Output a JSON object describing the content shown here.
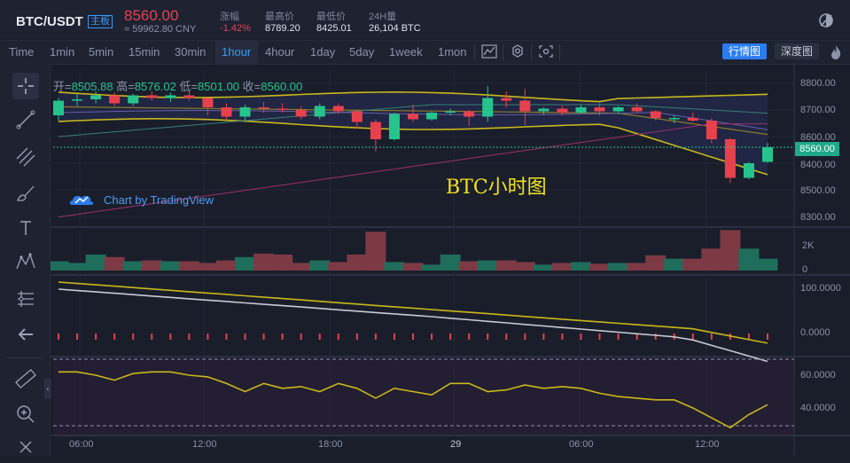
{
  "header": {
    "pair": "BTC/USDT",
    "board_tag": "主板",
    "price": "8560.00",
    "price_cny": "≈ 59962.80 CNY",
    "change_label": "涨幅",
    "change_value": "-1.42%",
    "high_label": "最高价",
    "high_value": "8789.20",
    "low_label": "最低价",
    "low_value": "8425.01",
    "volume_label": "24H量",
    "volume_value": "26,104 BTC"
  },
  "toolbar": {
    "time_label": "Time",
    "intervals": [
      "1min",
      "5min",
      "15min",
      "30min",
      "1hour",
      "4hour",
      "1day",
      "5day",
      "1week",
      "1mon"
    ],
    "active_interval": "1hour",
    "main_chart_label": "行情图",
    "depth_chart_label": "深度图"
  },
  "chart": {
    "watermark": "BTC小时图",
    "tradingview_label": "Chart by TradingView",
    "ohlc": {
      "open_label": "开=",
      "open": "8505.88",
      "high_label": "高=",
      "high": "8576.02",
      "low_label": "低=",
      "low": "8501.00",
      "close_label": "收=",
      "close": "8560.00"
    },
    "last_price_label": "8560.00",
    "colors": {
      "up": "#26c48d",
      "down": "#e8414e",
      "boll": "#c9b81b",
      "bg": "#1a1e2b"
    }
  },
  "chart_data": {
    "type": "candlestick",
    "price_axis_ticks": [
      "8800.00",
      "8700.00",
      "8600.00",
      "8500.00",
      "8400.00",
      "8300.00"
    ],
    "volume_axis_ticks": [
      "2K",
      "0"
    ],
    "macd_axis_ticks": [
      "100.0000",
      "0.0000"
    ],
    "osc_axis_ticks": [
      "60.0000",
      "40.0000"
    ],
    "x_ticks": [
      "06:00",
      "12:00",
      "18:00",
      "29",
      "06:00",
      "12:00"
    ],
    "candles": [
      [
        8680,
        8745,
        8660,
        8735
      ],
      [
        8735,
        8760,
        8715,
        8740
      ],
      [
        8740,
        8770,
        8725,
        8755
      ],
      [
        8755,
        8765,
        8715,
        8725
      ],
      [
        8725,
        8760,
        8715,
        8755
      ],
      [
        8755,
        8770,
        8735,
        8745
      ],
      [
        8745,
        8765,
        8730,
        8755
      ],
      [
        8755,
        8770,
        8735,
        8745
      ],
      [
        8745,
        8745,
        8680,
        8710
      ],
      [
        8710,
        8725,
        8665,
        8675
      ],
      [
        8675,
        8720,
        8655,
        8710
      ],
      [
        8710,
        8730,
        8690,
        8705
      ],
      [
        8705,
        8725,
        8690,
        8700
      ],
      [
        8700,
        8715,
        8665,
        8675
      ],
      [
        8675,
        8725,
        8665,
        8715
      ],
      [
        8715,
        8725,
        8685,
        8695
      ],
      [
        8695,
        8700,
        8630,
        8655
      ],
      [
        8655,
        8665,
        8545,
        8590
      ],
      [
        8590,
        8690,
        8585,
        8685
      ],
      [
        8685,
        8720,
        8655,
        8665
      ],
      [
        8665,
        8695,
        8660,
        8690
      ],
      [
        8690,
        8705,
        8680,
        8695
      ],
      [
        8695,
        8700,
        8640,
        8675
      ],
      [
        8675,
        8790,
        8655,
        8745
      ],
      [
        8745,
        8770,
        8710,
        8735
      ],
      [
        8735,
        8780,
        8645,
        8695
      ],
      [
        8695,
        8710,
        8680,
        8705
      ],
      [
        8705,
        8715,
        8680,
        8690
      ],
      [
        8690,
        8720,
        8685,
        8710
      ],
      [
        8710,
        8725,
        8680,
        8695
      ],
      [
        8695,
        8715,
        8685,
        8710
      ],
      [
        8710,
        8725,
        8690,
        8695
      ],
      [
        8695,
        8700,
        8660,
        8670
      ],
      [
        8670,
        8680,
        8650,
        8670
      ],
      [
        8670,
        8690,
        8655,
        8660
      ],
      [
        8660,
        8670,
        8575,
        8590
      ],
      [
        8590,
        8595,
        8425,
        8445
      ],
      [
        8445,
        8505,
        8440,
        8500
      ],
      [
        8505,
        8576,
        8501,
        8560
      ]
    ],
    "volume": [
      0.55,
      0.45,
      0.95,
      0.8,
      0.55,
      0.6,
      0.55,
      0.55,
      0.45,
      0.6,
      0.8,
      1.0,
      0.95,
      0.45,
      0.6,
      0.5,
      0.95,
      2.3,
      0.5,
      0.45,
      0.35,
      0.95,
      0.55,
      0.6,
      0.6,
      0.5,
      0.35,
      0.45,
      0.5,
      0.4,
      0.45,
      0.45,
      0.9,
      0.7,
      0.7,
      1.3,
      2.4,
      1.3,
      0.7
    ]
  }
}
